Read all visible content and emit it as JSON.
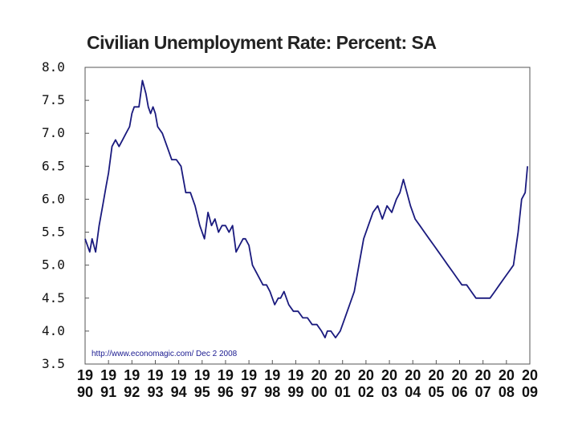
{
  "chart_data": {
    "type": "line",
    "title": "Civilian Unemployment Rate: Percent: SA",
    "xlabel": "",
    "ylabel": "",
    "ylim": [
      3.5,
      8.0
    ],
    "xlim": [
      1990,
      2009
    ],
    "grid": false,
    "line_color": "#1a1a7e",
    "y_ticks": [
      "8.0",
      "7.5",
      "7.0",
      "6.5",
      "6.0",
      "5.5",
      "5.0",
      "4.5",
      "4.0",
      "3.5"
    ],
    "x_ticks": [
      {
        "top": "19",
        "bottom": "90",
        "x": 1990
      },
      {
        "top": "19",
        "bottom": "91",
        "x": 1991
      },
      {
        "top": "19",
        "bottom": "92",
        "x": 1992
      },
      {
        "top": "19",
        "bottom": "93",
        "x": 1993
      },
      {
        "top": "19",
        "bottom": "94",
        "x": 1994
      },
      {
        "top": "19",
        "bottom": "95",
        "x": 1995
      },
      {
        "top": "19",
        "bottom": "96",
        "x": 1996
      },
      {
        "top": "19",
        "bottom": "97",
        "x": 1997
      },
      {
        "top": "19",
        "bottom": "98",
        "x": 1998
      },
      {
        "top": "19",
        "bottom": "99",
        "x": 1999
      },
      {
        "top": "20",
        "bottom": "00",
        "x": 2000
      },
      {
        "top": "20",
        "bottom": "01",
        "x": 2001
      },
      {
        "top": "20",
        "bottom": "02",
        "x": 2002
      },
      {
        "top": "20",
        "bottom": "03",
        "x": 2003
      },
      {
        "top": "20",
        "bottom": "04",
        "x": 2004
      },
      {
        "top": "20",
        "bottom": "05",
        "x": 2005
      },
      {
        "top": "20",
        "bottom": "06",
        "x": 2006
      },
      {
        "top": "20",
        "bottom": "07",
        "x": 2007
      },
      {
        "top": "20",
        "bottom": "08",
        "x": 2008
      },
      {
        "top": "20",
        "bottom": "09",
        "x": 2009
      }
    ],
    "annotation": "http://www.economagic.com/   Dec 2 2008",
    "series": [
      {
        "x": [
          1990.0,
          1990.1,
          1990.2,
          1990.3,
          1990.45,
          1990.6,
          1990.75,
          1990.9,
          1991.0,
          1991.15,
          1991.3,
          1991.45,
          1991.6,
          1991.75,
          1991.9,
          1992.0,
          1992.1,
          1992.3,
          1992.45,
          1992.6,
          1992.7,
          1992.8,
          1992.9,
          1993.0,
          1993.1,
          1993.3,
          1993.5,
          1993.7,
          1993.9,
          1994.1,
          1994.3,
          1994.5,
          1994.7,
          1994.9,
          1995.1,
          1995.25,
          1995.4,
          1995.55,
          1995.7,
          1995.85,
          1996.0,
          1996.15,
          1996.3,
          1996.45,
          1996.6,
          1996.75,
          1996.85,
          1997.0,
          1997.15,
          1997.3,
          1997.45,
          1997.6,
          1997.75,
          1997.9,
          1998.1,
          1998.25,
          1998.35,
          1998.5,
          1998.7,
          1998.9,
          1999.1,
          1999.3,
          1999.5,
          1999.7,
          1999.9,
          2000.1,
          2000.25,
          2000.35,
          2000.5,
          2000.7,
          2000.9,
          2001.1,
          2001.3,
          2001.5,
          2001.7,
          2001.9,
          2002.1,
          2002.3,
          2002.5,
          2002.7,
          2002.9,
          2003.1,
          2003.3,
          2003.45,
          2003.6,
          2003.75,
          2003.9,
          2004.1,
          2004.3,
          2004.5,
          2004.7,
          2004.9,
          2005.1,
          2005.3,
          2005.5,
          2005.7,
          2005.9,
          2006.1,
          2006.3,
          2006.5,
          2006.7,
          2006.9,
          2007.1,
          2007.3,
          2007.5,
          2007.7,
          2007.9,
          2008.1,
          2008.3,
          2008.5,
          2008.65,
          2008.8,
          2008.9
        ],
        "y": [
          5.4,
          5.3,
          5.2,
          5.4,
          5.2,
          5.6,
          5.9,
          6.2,
          6.4,
          6.8,
          6.9,
          6.8,
          6.9,
          7.0,
          7.1,
          7.3,
          7.4,
          7.4,
          7.8,
          7.6,
          7.4,
          7.3,
          7.4,
          7.3,
          7.1,
          7.0,
          6.8,
          6.6,
          6.6,
          6.5,
          6.1,
          6.1,
          5.9,
          5.6,
          5.4,
          5.8,
          5.6,
          5.7,
          5.5,
          5.6,
          5.6,
          5.5,
          5.6,
          5.2,
          5.3,
          5.4,
          5.4,
          5.3,
          5.0,
          4.9,
          4.8,
          4.7,
          4.7,
          4.6,
          4.4,
          4.5,
          4.5,
          4.6,
          4.4,
          4.3,
          4.3,
          4.2,
          4.2,
          4.1,
          4.1,
          4.0,
          3.9,
          4.0,
          4.0,
          3.9,
          4.0,
          4.2,
          4.4,
          4.6,
          5.0,
          5.4,
          5.6,
          5.8,
          5.9,
          5.7,
          5.9,
          5.8,
          6.0,
          6.1,
          6.3,
          6.1,
          5.9,
          5.7,
          5.6,
          5.5,
          5.4,
          5.3,
          5.2,
          5.1,
          5.0,
          4.9,
          4.8,
          4.7,
          4.7,
          4.6,
          4.5,
          4.5,
          4.5,
          4.5,
          4.6,
          4.7,
          4.8,
          4.9,
          5.0,
          5.5,
          6.0,
          6.1,
          6.5
        ]
      }
    ]
  }
}
